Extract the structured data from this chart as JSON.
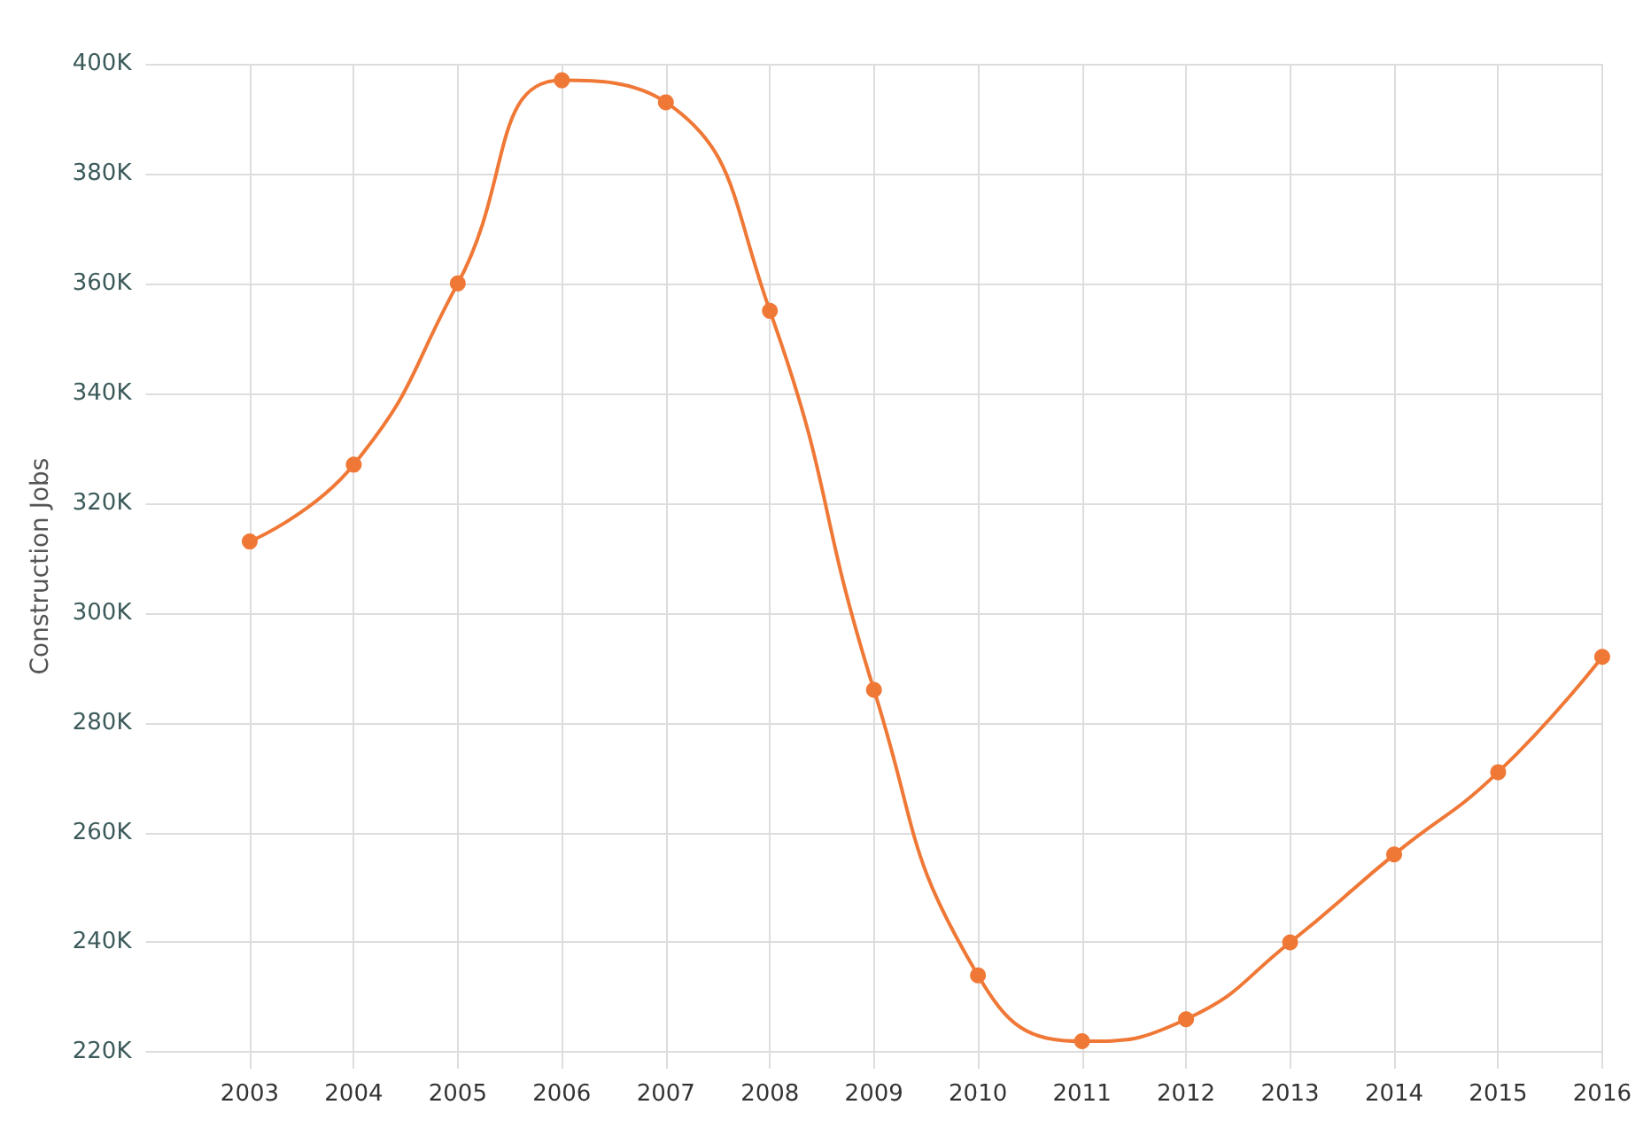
{
  "chart_data": {
    "type": "line",
    "ylabel": "Construction Jobs",
    "x": [
      2003,
      2004,
      2005,
      2006,
      2007,
      2008,
      2009,
      2010,
      2011,
      2012,
      2013,
      2014,
      2015,
      2016
    ],
    "series": [
      {
        "color": "#f07836",
        "values": [
          313000,
          327000,
          360000,
          397000,
          393000,
          355000,
          286000,
          234000,
          222000,
          226000,
          240000,
          256000,
          271000,
          292000
        ]
      }
    ],
    "xlim": [
      2002,
      2016
    ],
    "xticks": [
      2003,
      2004,
      2005,
      2006,
      2007,
      2008,
      2009,
      2010,
      2011,
      2012,
      2013,
      2014,
      2015,
      2016
    ],
    "ylim": [
      217000,
      400000
    ],
    "yticks": [
      {
        "value": 220000,
        "label": "220K"
      },
      {
        "value": 240000,
        "label": "240K"
      },
      {
        "value": 260000,
        "label": "260K"
      },
      {
        "value": 280000,
        "label": "280K"
      },
      {
        "value": 300000,
        "label": "300K"
      },
      {
        "value": 320000,
        "label": "320K"
      },
      {
        "value": 340000,
        "label": "340K"
      },
      {
        "value": 360000,
        "label": "360K"
      },
      {
        "value": 380000,
        "label": "380K"
      },
      {
        "value": 400000,
        "label": "400K"
      }
    ],
    "grid": true,
    "marker": "circle",
    "line_style": "solid"
  }
}
